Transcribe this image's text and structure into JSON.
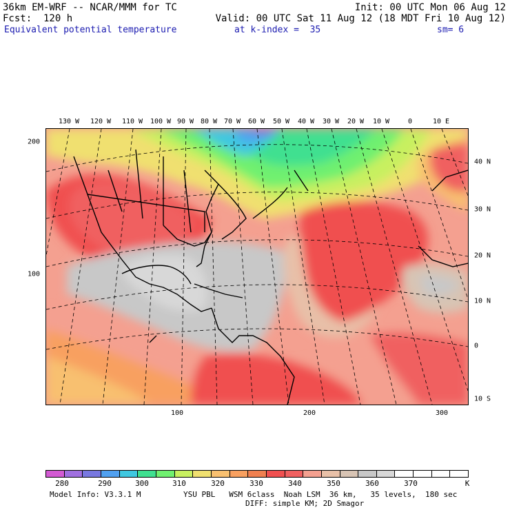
{
  "header": {
    "model": "36km EM-WRF -- NCAR/MMM for TC",
    "fcst": "Fcst:  120 h",
    "init": "Init: 00 UTC Mon 06 Aug 12",
    "valid": "Valid: 00 UTC Sat 11 Aug 12 (18 MDT Fri 10 Aug 12)",
    "field": "Equivalent potential temperature",
    "level": "at k-index =  35",
    "smooth": "sm= 6"
  },
  "map": {
    "lon_labels": [
      "130 W",
      "120 W",
      "110 W",
      "100 W",
      "90 W",
      "80 W",
      "70 W",
      "60 W",
      "50 W",
      "40 W",
      "30 W",
      "20 W",
      "10 W",
      "0",
      "10 E"
    ],
    "lat_labels": [
      "40 N",
      "30 N",
      "20 N",
      "10 N",
      "0",
      "10 S"
    ],
    "y_axis_labels": [
      "200",
      "100"
    ],
    "x_axis_labels": [
      "100",
      "200",
      "300"
    ]
  },
  "colorbar": {
    "colors": [
      "#d35ad3",
      "#a070e0",
      "#7878e0",
      "#50a0f0",
      "#40c8e0",
      "#40e090",
      "#70f070",
      "#c8f060",
      "#f0e070",
      "#f8c070",
      "#f8a060",
      "#f08050",
      "#f05050",
      "#f06060",
      "#f4a090",
      "#e8c0a8",
      "#d8c4b4",
      "#c8c8c8",
      "#d8d8d8",
      "#ffffff",
      "#ffffff",
      "#ffffff",
      "#ffffff"
    ],
    "labels": [
      "280",
      "290",
      "300",
      "310",
      "320",
      "330",
      "340",
      "350",
      "360",
      "370"
    ],
    "unit": "K"
  },
  "footer": {
    "model_info": "Model Info: V3.3.1 M",
    "physics": "YSU PBL   WSM 6class  Noah LSM  36 km,   35 levels,  180 sec",
    "diff": "DIFF: simple KM; 2D Smagor"
  }
}
